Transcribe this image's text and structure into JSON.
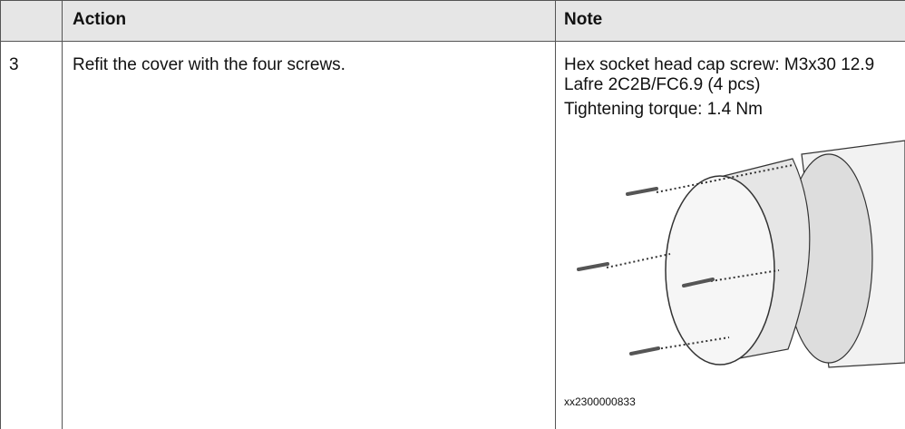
{
  "table": {
    "header": [
      "Action",
      "Note"
    ],
    "rows": [
      {
        "step": "3",
        "action": "Refit the cover with the four screws.",
        "note": [
          "Hex socket head cap screw: M3x30 12.9 Lafre 2C2B/FC6.9 (4 pcs)",
          "Tightening torque: 1.4 Nm"
        ],
        "figure_id": "xx2300000833"
      }
    ]
  }
}
